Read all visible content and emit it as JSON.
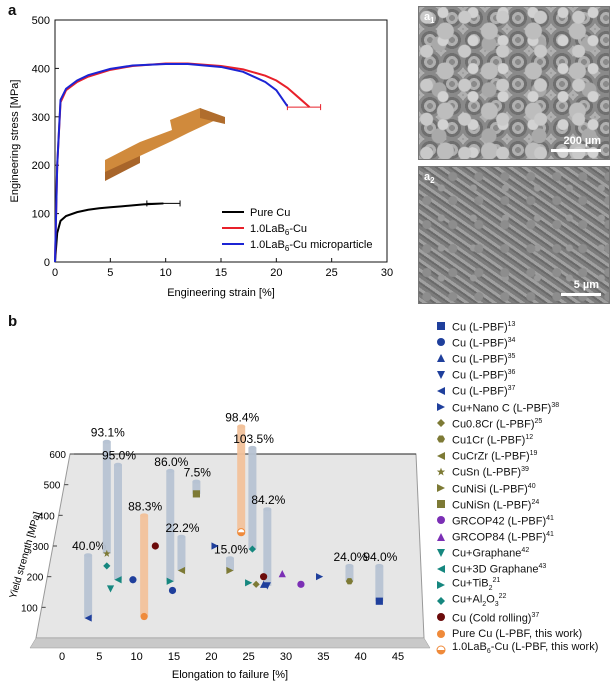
{
  "panels": {
    "a_label": "a",
    "b_label": "b",
    "a1_label": "a",
    "a1_sub": "1",
    "a2_label": "a",
    "a2_sub": "2",
    "a1_scale": "200 µm",
    "a2_scale": "5 µm"
  },
  "chart_data": [
    {
      "type": "line",
      "xlabel": "Engineering strain [%]",
      "ylabel": "Engineering stress [MPa]",
      "xlim": [
        0,
        30
      ],
      "ylim": [
        0,
        500
      ],
      "xticks": [
        0,
        5,
        10,
        15,
        20,
        25,
        30
      ],
      "yticks": [
        0,
        100,
        200,
        300,
        400,
        500
      ],
      "legend_position": "bottom-right",
      "series": [
        {
          "name": "Pure Cu",
          "color": "#000000",
          "x": [
            0,
            0.2,
            0.5,
            1,
            2,
            3,
            4,
            5,
            6,
            7,
            8,
            9,
            9.8
          ],
          "y": [
            0,
            60,
            85,
            95,
            103,
            108,
            111,
            113,
            115,
            117,
            119,
            120,
            121
          ],
          "errorbar": {
            "x": 9.8,
            "y": 121,
            "xerr": 1.5
          }
        },
        {
          "name": "1.0LaB6-Cu",
          "color": "#e8202a",
          "x": [
            0,
            0.2,
            0.5,
            1,
            2,
            3,
            5,
            7,
            10,
            12,
            15,
            17,
            19,
            20,
            21,
            22,
            23
          ],
          "y": [
            0,
            200,
            330,
            355,
            372,
            383,
            397,
            405,
            410,
            410,
            405,
            398,
            385,
            375,
            360,
            340,
            320
          ],
          "errorbar": {
            "x": 22.5,
            "y": 320,
            "xerr": 1.5
          }
        },
        {
          "name": "1.0LaB6-Cu microparticle",
          "color": "#1c24d4",
          "x": [
            0,
            0.2,
            0.5,
            1,
            2,
            3,
            5,
            7,
            10,
            12,
            15,
            17,
            19,
            20,
            21
          ],
          "y": [
            0,
            200,
            335,
            358,
            375,
            386,
            399,
            406,
            409,
            409,
            403,
            393,
            372,
            355,
            322
          ]
        }
      ],
      "legend_labels": {
        "pure": "Pure Cu",
        "lab_main": "1.0LaB",
        "lab_sub": "6",
        "lab_rest": "-Cu",
        "micro_rest": "-Cu microparticle"
      }
    },
    {
      "type": "scatter",
      "xlabel": "Elongation to failure [%]",
      "ylabel": "Yield strength [MPa]",
      "xlim": [
        0,
        45
      ],
      "ylim": [
        0,
        600
      ],
      "xticks": [
        0,
        5,
        10,
        15,
        20,
        25,
        30,
        35,
        40,
        45
      ],
      "yticks": [
        100,
        200,
        300,
        400,
        500,
        600
      ],
      "series": [
        {
          "name": "Cu (L-PBF)",
          "ref": "13",
          "marker": "square",
          "color": "#1f3f9c",
          "x": [
            42.5
          ],
          "y": [
            120
          ]
        },
        {
          "name": "Cu (L-PBF)",
          "ref": "34",
          "marker": "circle",
          "color": "#1f3f9c",
          "x": [
            9.5,
            14.8
          ],
          "y": [
            190,
            155
          ]
        },
        {
          "name": "Cu (L-PBF)",
          "ref": "35",
          "marker": "triangle-up",
          "color": "#1f3f9c",
          "x": [
            27
          ],
          "y": [
            175
          ]
        },
        {
          "name": "Cu (L-PBF)",
          "ref": "36",
          "marker": "triangle-down",
          "color": "#1f3f9c",
          "x": [
            27.5
          ],
          "y": [
            170
          ]
        },
        {
          "name": "Cu (L-PBF)",
          "ref": "37",
          "marker": "triangle-left",
          "color": "#1f3f9c",
          "x": [
            3.5
          ],
          "y": [
            65
          ]
        },
        {
          "name": "Cu+Nano C (L-PBF)",
          "ref": "38",
          "marker": "triangle-right",
          "color": "#1f3f9c",
          "x": [
            20.5,
            34.5
          ],
          "y": [
            300,
            200
          ]
        },
        {
          "name": "Cu0.8Cr (L-PBF)",
          "ref": "25",
          "marker": "diamond",
          "color": "#7d7a35",
          "x": [
            26
          ],
          "y": [
            175
          ]
        },
        {
          "name": "Cu1Cr (L-PBF)",
          "ref": "12",
          "marker": "hexagon",
          "color": "#7d7a35",
          "x": [
            38.5
          ],
          "y": [
            185
          ]
        },
        {
          "name": "CuCrZr (L-PBF)",
          "ref": "19",
          "marker": "triangle-left",
          "color": "#7d7a35",
          "x": [
            16
          ],
          "y": [
            220
          ]
        },
        {
          "name": "CuSn (L-PBF)",
          "ref": "39",
          "marker": "star",
          "color": "#7d7a35",
          "x": [
            6
          ],
          "y": [
            275
          ]
        },
        {
          "name": "CuNiSi (L-PBF)",
          "ref": "40",
          "marker": "triangle-right",
          "color": "#7d7a35",
          "x": [
            22.5
          ],
          "y": [
            220
          ]
        },
        {
          "name": "CuNiSn (L-PBF)",
          "ref": "24",
          "marker": "square",
          "color": "#7d7a35",
          "x": [
            18
          ],
          "y": [
            470
          ]
        },
        {
          "name": "GRCOP42 (L-PBF)",
          "ref": "41",
          "marker": "circle",
          "color": "#7b2fb5",
          "x": [
            32
          ],
          "y": [
            175
          ]
        },
        {
          "name": "GRCOP84 (L-PBF)",
          "ref": "41",
          "marker": "triangle-up",
          "color": "#7b2fb5",
          "x": [
            29.5
          ],
          "y": [
            210
          ]
        },
        {
          "name": "Cu+Graphane",
          "ref": "42",
          "marker": "triangle-down",
          "color": "#16877f",
          "x": [
            6.5
          ],
          "y": [
            160
          ]
        },
        {
          "name": "Cu+3D Graphane",
          "ref": "43",
          "marker": "triangle-left",
          "color": "#16877f",
          "x": [
            7.5
          ],
          "y": [
            190
          ]
        },
        {
          "name": "Cu+TiB2",
          "ref": "21",
          "marker": "triangle-right",
          "color": "#16877f",
          "x": [
            14.5,
            25
          ],
          "y": [
            185,
            180
          ]
        },
        {
          "name": "Cu+Al2O3",
          "ref": "22",
          "marker": "diamond",
          "color": "#16877f",
          "x": [
            6,
            25.5
          ],
          "y": [
            235,
            290
          ]
        },
        {
          "name": "Cu (Cold rolling)",
          "ref": "37",
          "marker": "circle",
          "color": "#6b0b0b",
          "x": [
            12.5,
            27
          ],
          "y": [
            300,
            200
          ]
        },
        {
          "name": "Pure Cu (L-PBF, this work)",
          "ref": "",
          "marker": "circle",
          "color": "#ef8a3a",
          "x": [
            11
          ],
          "y": [
            70
          ]
        },
        {
          "name": "1.0LaB6-Cu (L-PBF, this work)",
          "ref": "",
          "marker": "half-circle",
          "color": "#ef8a3a",
          "x": [
            24
          ],
          "y": [
            345
          ]
        }
      ],
      "improvement_bars": [
        {
          "x": 3.5,
          "low": 65,
          "high": 270,
          "label": "40.0%",
          "color": "#b7c3d3"
        },
        {
          "x": 6.0,
          "low": 275,
          "high": 640,
          "label": "93.1%",
          "color": "#b7c3d3"
        },
        {
          "x": 7.5,
          "low": 190,
          "high": 565,
          "label": "95.0%",
          "color": "#b7c3d3"
        },
        {
          "x": 11.0,
          "low": 70,
          "high": 400,
          "label": "88.3%",
          "color": "#f2c29b"
        },
        {
          "x": 14.5,
          "low": 185,
          "high": 545,
          "label": "86.0%",
          "color": "#b7c3d3"
        },
        {
          "x": 16.0,
          "low": 220,
          "high": 330,
          "label": "22.2%",
          "color": "#b7c3d3"
        },
        {
          "x": 18.0,
          "low": 470,
          "high": 510,
          "label": "7.5%",
          "color": "#b7c3d3"
        },
        {
          "x": 22.5,
          "low": 220,
          "high": 260,
          "label": "15.0%",
          "color": "#b7c3d3"
        },
        {
          "x": 24.0,
          "low": 345,
          "high": 690,
          "label": "98.4%",
          "color": "#f2c29b"
        },
        {
          "x": 25.5,
          "low": 290,
          "high": 620,
          "label": "103.5%",
          "color": "#b7c3d3"
        },
        {
          "x": 27.5,
          "low": 170,
          "high": 420,
          "label": "84.2%",
          "color": "#b7c3d3"
        },
        {
          "x": 38.5,
          "low": 185,
          "high": 235,
          "label": "24.0%",
          "color": "#b7c3d3"
        },
        {
          "x": 42.5,
          "low": 120,
          "high": 235,
          "label": "94.0%",
          "color": "#b7c3d3"
        }
      ]
    }
  ],
  "legend_b": [
    {
      "text": "Cu (L-PBF)",
      "sup": "13",
      "marker": "square",
      "color": "#1f3f9c"
    },
    {
      "text": "Cu (L-PBF)",
      "sup": "34",
      "marker": "circle",
      "color": "#1f3f9c"
    },
    {
      "text": "Cu (L-PBF)",
      "sup": "35",
      "marker": "triangle-up",
      "color": "#1f3f9c"
    },
    {
      "text": "Cu (L-PBF)",
      "sup": "36",
      "marker": "triangle-down",
      "color": "#1f3f9c"
    },
    {
      "text": "Cu (L-PBF)",
      "sup": "37",
      "marker": "triangle-left",
      "color": "#1f3f9c"
    },
    {
      "text": "Cu+Nano C (L-PBF)",
      "sup": "38",
      "marker": "triangle-right",
      "color": "#1f3f9c"
    },
    {
      "text": "Cu0.8Cr (L-PBF)",
      "sup": "25",
      "marker": "diamond",
      "color": "#7d7a35"
    },
    {
      "text": "Cu1Cr (L-PBF)",
      "sup": "12",
      "marker": "hexagon",
      "color": "#7d7a35"
    },
    {
      "text": "CuCrZr (L-PBF)",
      "sup": "19",
      "marker": "triangle-left",
      "color": "#7d7a35"
    },
    {
      "text": "CuSn (L-PBF)",
      "sup": "39",
      "marker": "star",
      "color": "#7d7a35"
    },
    {
      "text": "CuNiSi (L-PBF)",
      "sup": "40",
      "marker": "triangle-right",
      "color": "#7d7a35"
    },
    {
      "text": "CuNiSn (L-PBF)",
      "sup": "24",
      "marker": "square",
      "color": "#7d7a35"
    },
    {
      "text": "GRCOP42 (L-PBF)",
      "sup": "41",
      "marker": "circle",
      "color": "#7b2fb5"
    },
    {
      "text": "GRCOP84 (L-PBF)",
      "sup": "41",
      "marker": "triangle-up",
      "color": "#7b2fb5"
    },
    {
      "text": "Cu+Graphane",
      "sup": "42",
      "marker": "triangle-down",
      "color": "#16877f"
    },
    {
      "text": "Cu+3D Graphane",
      "sup": "43",
      "marker": "triangle-left",
      "color": "#16877f"
    },
    {
      "text": "Cu+TiB",
      "sub": "2",
      "sup": "21",
      "marker": "triangle-right",
      "color": "#16877f"
    },
    {
      "text": "Cu+Al",
      "sub": "2",
      "text2": "O",
      "sub2": "3",
      "sup": "22",
      "marker": "diamond",
      "color": "#16877f"
    },
    {
      "text": "Cu (Cold rolling)",
      "sup": "37",
      "marker": "circle",
      "color": "#6b0b0b"
    },
    {
      "text": "Pure Cu (L-PBF, this work)",
      "sup": "",
      "marker": "circle",
      "color": "#ef8a3a"
    },
    {
      "text": "1.0LaB",
      "sub": "6",
      "text2": "-Cu (L-PBF, this work)",
      "sup": "",
      "marker": "half-circle",
      "color": "#ef8a3a"
    }
  ],
  "colors": {
    "specimen": "#d08a3c",
    "platform": "#e6e6e6",
    "axis": "#111111"
  }
}
